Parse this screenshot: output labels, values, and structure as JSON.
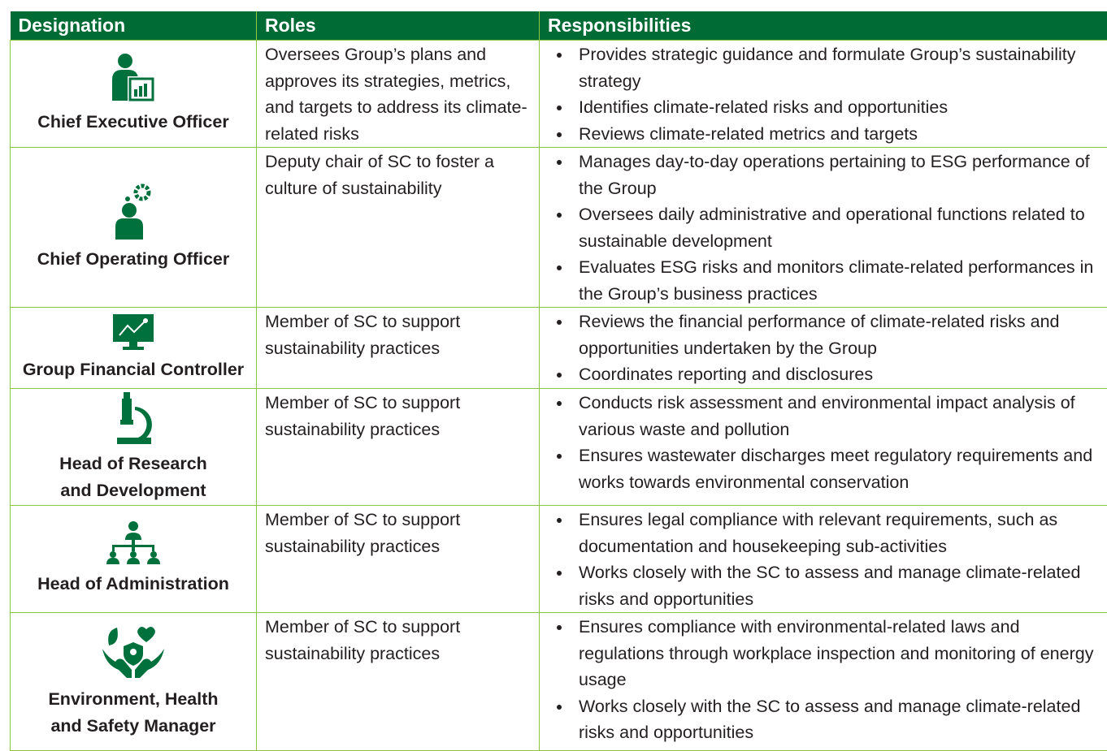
{
  "table": {
    "headers": [
      "Designation",
      "Roles",
      "Responsibilities"
    ],
    "rows": [
      {
        "designation": [
          "Chief Executive Officer"
        ],
        "role": "Oversees Group’s plans and approves its strategies, metrics, and targets to address its climate-related risks",
        "responsibilities": [
          "Provides strategic guidance and formulate Group’s sustainability strategy",
          "Identifies climate-related risks and opportunities",
          "Reviews climate-related metrics and targets"
        ]
      },
      {
        "designation": [
          "Chief Operating Officer"
        ],
        "role": "Deputy chair of SC to foster a culture of sustainability",
        "responsibilities": [
          "Manages day-to-day operations pertaining to ESG performance of the Group",
          "Oversees daily administrative and operational functions related to sustainable development",
          "Evaluates ESG risks and monitors climate-related performances in the Group’s business practices"
        ]
      },
      {
        "designation": [
          "Group Financial Controller"
        ],
        "role": "Member of SC to support sustainability practices",
        "responsibilities": [
          "Reviews the financial performance of climate-related risks and opportunities undertaken by the Group",
          "Coordinates reporting and disclosures"
        ]
      },
      {
        "designation": [
          "Head of Research",
          "and Development"
        ],
        "role": "Member of SC to support sustainability practices",
        "responsibilities": [
          "Conducts risk assessment and environmental impact analysis of various waste and pollution",
          "Ensures wastewater discharges meet regulatory requirements and works towards environmental conservation"
        ]
      },
      {
        "designation": [
          "Head of Administration"
        ],
        "role": "Member of SC to support sustainability practices",
        "responsibilities": [
          "Ensures legal compliance with relevant requirements, such as documentation and housekeeping sub-activities",
          "Works closely with the SC to assess and manage climate-related risks and opportunities"
        ]
      },
      {
        "designation": [
          "Environment, Health",
          "and Safety Manager"
        ],
        "role": "Member of SC to support sustainability practices",
        "responsibilities": [
          "Ensures compliance with environmental-related laws and regulations through workplace inspection and monitoring of energy usage",
          "Works closely with the SC to assess and manage climate-related risks and opportunities"
        ]
      }
    ]
  }
}
